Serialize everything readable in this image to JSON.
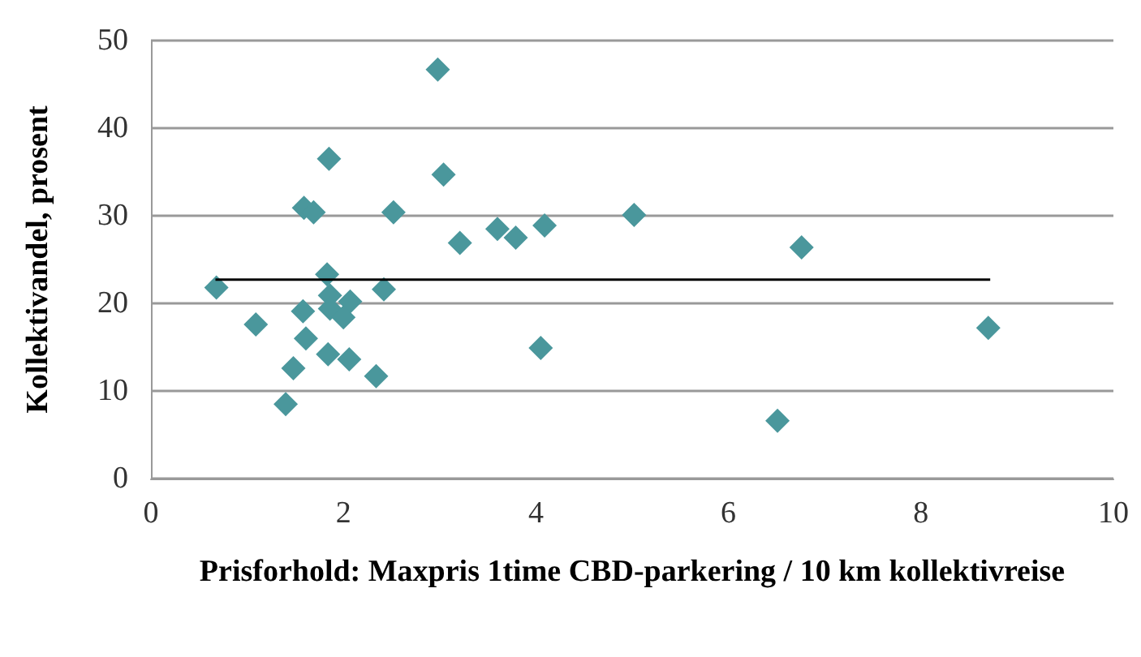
{
  "chart_data": {
    "type": "scatter",
    "xlabel": "Prisforhold: Maxpris 1time CBD-parkering / 10 km kollektivreise",
    "ylabel": "Kollektivandel, prosent",
    "xlim": [
      0,
      10
    ],
    "xticks": [
      0,
      2,
      4,
      6,
      8,
      10
    ],
    "ylim": [
      0,
      50
    ],
    "yticks": [
      0,
      10,
      20,
      30,
      40,
      50
    ],
    "grid": "y",
    "marker": "diamond",
    "series": [
      {
        "color": "#4a979c",
        "x": [
          2.98,
          1.85,
          3.04,
          1.59,
          1.69,
          2.52,
          3.21,
          0.68,
          1.83,
          2.42,
          1.86,
          2.07,
          1.58,
          1.86,
          2.0,
          1.09,
          1.61,
          1.84,
          2.06,
          1.48,
          2.34,
          1.4,
          3.6,
          3.79,
          4.09,
          5.02,
          6.76,
          4.05,
          6.51,
          8.7
        ],
        "values": [
          46.7,
          36.5,
          34.7,
          30.9,
          30.4,
          30.4,
          26.9,
          21.8,
          23.3,
          21.6,
          20.9,
          20.2,
          19.1,
          19.4,
          18.4,
          17.6,
          16.0,
          14.2,
          13.6,
          12.6,
          11.7,
          8.5,
          28.5,
          27.5,
          28.9,
          30.1,
          26.4,
          14.9,
          6.6,
          17.2
        ]
      },
      {
        "type": "line",
        "color": "#000000",
        "marker": "none",
        "x": [
          0.67,
          8.72
        ],
        "values": [
          22.7,
          22.7
        ]
      }
    ]
  }
}
